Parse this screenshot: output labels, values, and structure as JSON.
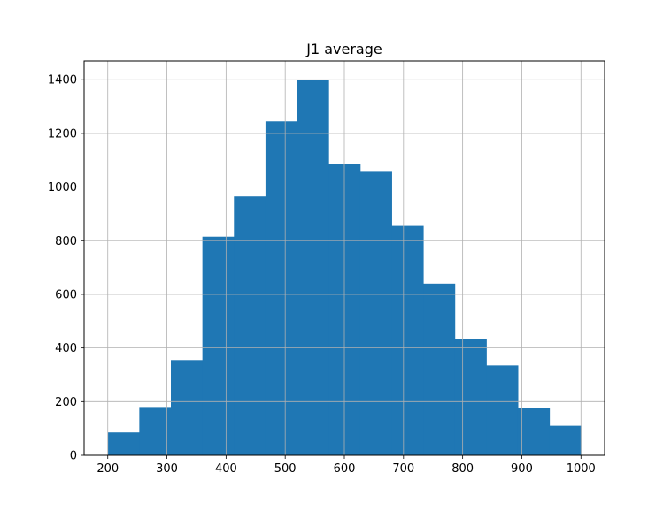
{
  "chart_data": {
    "type": "bar",
    "title": "J1 average",
    "xlabel": "",
    "ylabel": "",
    "bin_edges": [
      200,
      253.33,
      306.67,
      360,
      413.33,
      466.67,
      520,
      573.33,
      626.67,
      680,
      733.33,
      786.67,
      840,
      893.33,
      946.67,
      1000
    ],
    "values": [
      85,
      180,
      355,
      815,
      965,
      1245,
      1400,
      1085,
      1060,
      855,
      640,
      435,
      335,
      175,
      110
    ],
    "xlim": [
      160,
      1040
    ],
    "ylim": [
      0,
      1470
    ],
    "xticks": [
      200,
      300,
      400,
      500,
      600,
      700,
      800,
      900,
      1000
    ],
    "yticks": [
      0,
      200,
      400,
      600,
      800,
      1000,
      1200,
      1400
    ],
    "xtick_labels": [
      "200",
      "300",
      "400",
      "500",
      "600",
      "700",
      "800",
      "900",
      "1000"
    ],
    "ytick_labels": [
      "0",
      "200",
      "400",
      "600",
      "800",
      "1000",
      "1200",
      "1400"
    ],
    "grid": true,
    "bar_color": "#1f77b4",
    "grid_color": "#b0b0b0"
  }
}
